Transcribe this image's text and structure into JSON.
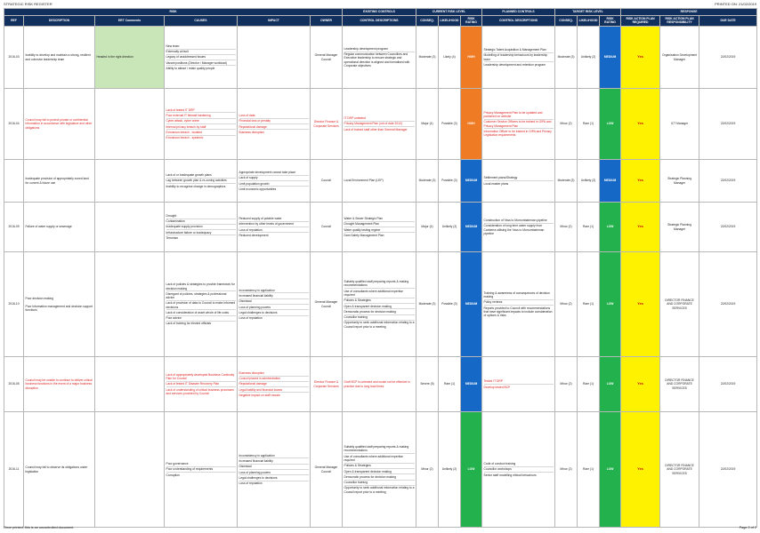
{
  "header": {
    "left": "STRATEGIC RISK REGISTER",
    "right": "PRINTED ON: 21/02/2019"
  },
  "footer": {
    "left": "Once printed, this is an uncontrolled document.",
    "right": "Page 2 of 2"
  },
  "groups": {
    "risk": "RISK",
    "existing": "EXISTING CONTROLS",
    "current": "CURRENT RISK LEVEL",
    "planned": "PLANNED CONTROLS",
    "target": "TARGET RISK LEVEL",
    "response": "RESPONSE"
  },
  "columns": {
    "ref": "REF",
    "description": "DESCRIPTION",
    "ert": "ERT Comments",
    "causes": "CAUSES",
    "impact": "IMPACT",
    "owner": "OWNER",
    "control_desc": "CONTROL DESCRIPTIONS",
    "conseq": "CONSEQ.",
    "likelihood": "LIKELIHOOD",
    "rating": "RISK RATING",
    "planned_desc": "CONTROL DESCRIPTIONS",
    "t_conseq": "CONSEQ.",
    "t_likelihood": "LIKELIHOOD",
    "t_rating": "RISK RATING",
    "action_required": "RISK ACTION PLAN REQUIRED",
    "action_resp": "RISK ACTION PLAN RESPONSIBILITY",
    "due": "DUE DATE"
  },
  "rows": [
    {
      "ref": "2016-03",
      "description": "Inability to develop and maintain a strong, resilient and cohesive leadership team",
      "ert": "Headed in the right direction",
      "causes": [
        "New team",
        "Externally at fault",
        "Legacy of unaddressed issues",
        "Vacant positions (Director / Manager workload)",
        "Ability to attract / retain quality people"
      ],
      "impact": [],
      "owner": "General Manager\nCouncil",
      "controls": [
        "Leadership development program",
        "Regular communication between Councillors and Executive leadership to ensure strategic and operational direction is aligned and formalised with Corporate objectives"
      ],
      "conseq": "Moderate (3)",
      "likelihood": "Likely (4)",
      "rating": "HIGH",
      "planned": [
        "Strategic Talent Acquisition & Management Plan",
        "Modelling of leadership behaviours by leadership team",
        "Leadership development and retention program"
      ],
      "t_conseq": "Moderate (3)",
      "t_likelihood": "Unlikely (2)",
      "t_rating": "MEDIUM",
      "required": "Yes",
      "responsibility": "Organisation Development Manager",
      "due": "22/02/2019"
    },
    {
      "ref": "2016-04",
      "description": "Council may fail to protect private or confidential information in accordance with legislative and other obligations",
      "ert": "",
      "causes": [
        "Lack of tested IT DRP",
        "Poor external IT firewall hardening",
        "Cyber attack, cyber crime",
        "Internal privacy breach by staff",
        "Erroneous breach - isolated",
        "Erroneous breach - systemic"
      ],
      "impact": [
        "Loss of data",
        "Financial loss or penalty",
        "Reputational damage",
        "Business disruption"
      ],
      "owner": "Director Finance & Corporate Services",
      "controls": [
        "IT DRP untested",
        "Privacy Management Plan (out of date 2010)",
        "Lack of trained staff other than General Manager"
      ],
      "conseq": "Major (4)",
      "likelihood": "Possible (3)",
      "rating": "HIGH",
      "planned": [
        "Privacy Management Plan to be updated and published on website",
        "Customer Service Officers to be trained in GIPA and Privacy Management Plan",
        "Information Officer to be trained in GIPA and Privacy Legislation requirements"
      ],
      "t_conseq": "Minor (2)",
      "t_likelihood": "Rare (1)",
      "t_rating": "LOW",
      "required": "Yes",
      "responsibility": "ICT Manager",
      "due": "22/02/2019"
    },
    {
      "ref": "",
      "description": "Inadequate provision of appropriately zoned land for current & future use",
      "ert": "",
      "causes": [
        "Lack of or inadequate growth plans",
        "Lag between growth plan & re-zoning activities",
        "Inability to recognise change in demographics"
      ],
      "impact": [
        "Appropriate development cannot take place",
        "Lack of supply",
        "Limit population growth",
        "Limit economic opportunities"
      ],
      "owner": "Council",
      "controls": [
        "Local Environment Plan (LEP)"
      ],
      "conseq": "Moderate (3)",
      "likelihood": "Possible (3)",
      "rating": "MEDIUM",
      "planned": [
        "Settlement plans/Strategy",
        "Local master plans"
      ],
      "t_conseq": "Moderate (3)",
      "t_likelihood": "Unlikely (2)",
      "t_rating": "MEDIUM",
      "required": "Yes",
      "responsibility": "Strategic Planning Manager",
      "due": "22/02/2019"
    },
    {
      "ref": "2016-09",
      "description": "Failure of water supply or sewerage",
      "ert": "",
      "causes": [
        "Drought",
        "Contamination",
        "Inadequate supply provision",
        "Infrastructure failure or inadequacy",
        "Terrorism"
      ],
      "impact": [
        "Reduced supply of potable water",
        "Intervention by other levels of government",
        "Loss of reputation",
        "Reduced development"
      ],
      "owner": "Council",
      "controls": [
        "Water & Sewer Strategic Plan",
        "Drought Management Plan",
        "Water quality testing regime",
        "Dam Safety Management Plan"
      ],
      "conseq": "Major (4)",
      "likelihood": "Unlikely (2)",
      "rating": "MEDIUM",
      "planned": [
        "Construction of Yass to Murrumbateman pipeline",
        "Consideration of long term water supply from Canberra utilising the Yass to Murrumbateman pipeline"
      ],
      "t_conseq": "Minor (2)",
      "t_likelihood": "Rare (1)",
      "t_rating": "LOW",
      "required": "Yes",
      "responsibility": "Strategic Planning Manager",
      "due": "22/02/2019"
    },
    {
      "ref": "2016-10",
      "description": "Poor decision making\n\nPoor information management and decision support functions",
      "ert": "",
      "causes": [
        "Lack of policies & strategies to provide framework for decision making",
        "Disregard of policies, strategies & professional advice",
        "Lack of provision of data to Council to make informed decisions",
        "Lack of consideration of asset whole of life costs",
        "Poor advice",
        "Lack of training for elected officials"
      ],
      "impact": [
        "Inconsistency in application",
        "Increased financial liability",
        "Dismissal",
        "Loss of planning powers",
        "Legal challenges to decisions",
        "Loss of reputation"
      ],
      "owner": "General Manager\nCouncil",
      "controls": [
        "Suitably qualified staff preparing reports & making recommendations",
        "Use of consultants where additional expertise required",
        "Policies & Strategies",
        "Open & transparent decision making",
        "Democratic process for decision making",
        "Councillor training",
        "Opportunity to seek additional information relating to a Council report prior to a meeting"
      ],
      "conseq": "Moderate (3)",
      "likelihood": "Possible (3)",
      "rating": "MEDIUM",
      "planned": [
        "Training & awareness of consequences of decision making",
        "Policy reviews",
        "Reports provided to Council with recommendations that have significant impacts to include consideration of options & risks"
      ],
      "t_conseq": "Minor (2)",
      "t_likelihood": "Rare (1)",
      "t_rating": "LOW",
      "required": "Yes",
      "responsibility": "DIRECTOR FINANCE AND CORPORATE SERVICES",
      "due": "22/02/2019"
    },
    {
      "ref": "2016-05",
      "description": "Council may be unable to continue to deliver critical business functions in the event of a major business disruption",
      "ert": "",
      "causes": [
        "Lack of appropriately developed Business Continuity Plan for Council",
        "Lack of tested IT Disaster Recovery Plan",
        "Lack of understanding of critical business processes and services provided by Council"
      ],
      "impact": [
        "Business disruption",
        "Council placed in administration",
        "Reputational damage",
        "Legal liability and financial losses",
        "Negative impact on staff morale"
      ],
      "owner": "Director Finance & Corporate Services",
      "controls": [
        "Draft BCP is untested and would not be effective in practice due to long lead times"
      ],
      "conseq": "Severe (5)",
      "likelihood": "Rare (1)",
      "rating": "MEDIUM",
      "planned": [
        "Tested IT DRP",
        "Develop tested BCP"
      ],
      "t_conseq": "Minor (2)",
      "t_likelihood": "Rare (1)",
      "t_rating": "LOW",
      "required": "Yes",
      "responsibility": "DIRECTOR FINANCE AND CORPORATE SERVICES",
      "due": "22/02/2019"
    },
    {
      "ref": "2016-11",
      "description": "Council may fail to observe its obligations under legislation",
      "ert": "",
      "causes": [
        "Poor governance",
        "Poor understanding of requirements",
        "Corruption"
      ],
      "impact": [
        "Inconsistency in application",
        "Increased financial liability",
        "Dismissal",
        "Loss of planning powers",
        "Legal challenges to decisions",
        "Loss of reputation"
      ],
      "owner": "General Manager\nCouncil",
      "controls": [
        "Suitably qualified staff preparing reports & making recommendations",
        "Use of consultants where additional expertise required",
        "Policies & Strategies",
        "Open & transparent decision making",
        "Democratic process for decision making",
        "Councillor training",
        "Opportunity to seek additional information relating to a Council report prior to a meeting"
      ],
      "conseq": "Minor (2)",
      "likelihood": "Unlikely (2)",
      "rating": "LOW",
      "planned": [
        "Code of conduct training",
        "Councillor workshops",
        "Senior staff modelling ethical behaviours"
      ],
      "t_conseq": "Minor (2)",
      "t_likelihood": "Rare (1)",
      "t_rating": "LOW",
      "required": "Yes",
      "responsibility": "DIRECTOR FINANCE AND CORPORATE SERVICES",
      "due": "22/02/2019"
    }
  ]
}
